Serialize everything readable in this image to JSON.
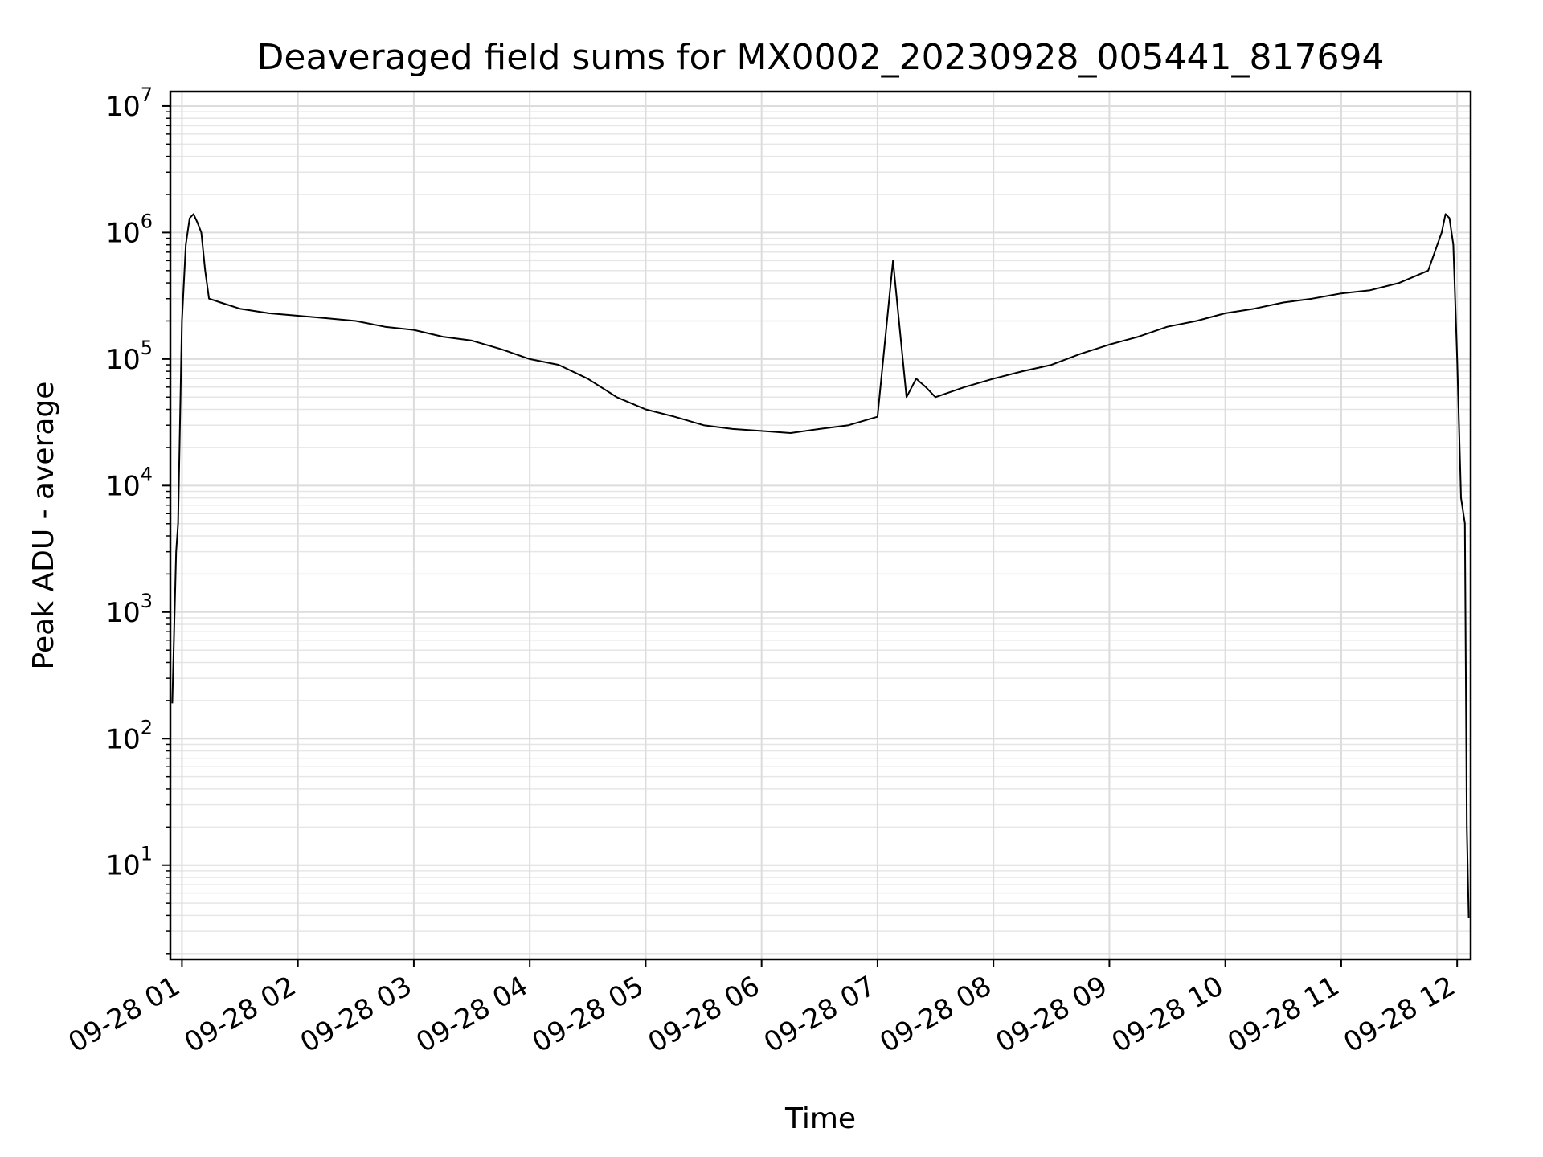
{
  "chart_data": {
    "type": "line",
    "title": "Deaveraged field sums for MX0002_20230928_005441_817694",
    "xlabel": "Time",
    "ylabel": "Peak ADU - average",
    "yscale": "log",
    "ylim": [
      1.8,
      13000000
    ],
    "xlim": [
      "09-28 00:54",
      "09-28 12:07"
    ],
    "grid": true,
    "color": "#000000",
    "x_ticks": [
      {
        "label": "09-28 01",
        "value": "09-28 01:00"
      },
      {
        "label": "09-28 02",
        "value": "09-28 02:00"
      },
      {
        "label": "09-28 03",
        "value": "09-28 03:00"
      },
      {
        "label": "09-28 04",
        "value": "09-28 04:00"
      },
      {
        "label": "09-28 05",
        "value": "09-28 05:00"
      },
      {
        "label": "09-28 06",
        "value": "09-28 06:00"
      },
      {
        "label": "09-28 07",
        "value": "09-28 07:00"
      },
      {
        "label": "09-28 08",
        "value": "09-28 08:00"
      },
      {
        "label": "09-28 09",
        "value": "09-28 09:00"
      },
      {
        "label": "09-28 10",
        "value": "09-28 10:00"
      },
      {
        "label": "09-28 11",
        "value": "09-28 11:00"
      },
      {
        "label": "09-28 12",
        "value": "09-28 12:00"
      }
    ],
    "y_ticks": [
      {
        "base": "10",
        "exp": "1",
        "value": 10
      },
      {
        "base": "10",
        "exp": "2",
        "value": 100
      },
      {
        "base": "10",
        "exp": "3",
        "value": 1000
      },
      {
        "base": "10",
        "exp": "4",
        "value": 10000
      },
      {
        "base": "10",
        "exp": "5",
        "value": 100000
      },
      {
        "base": "10",
        "exp": "6",
        "value": 1000000
      },
      {
        "base": "10",
        "exp": "7",
        "value": 10000000
      }
    ],
    "series": [
      {
        "x": [
          "09-28 00:55",
          "09-28 00:57",
          "09-28 00:58",
          "09-28 01:00",
          "09-28 01:02",
          "09-28 01:04",
          "09-28 01:06",
          "09-28 01:08",
          "09-28 01:10",
          "09-28 01:12",
          "09-28 01:14",
          "09-28 01:20",
          "09-28 01:30",
          "09-28 01:45",
          "09-28 02:00",
          "09-28 02:15",
          "09-28 02:30",
          "09-28 02:45",
          "09-28 03:00",
          "09-28 03:15",
          "09-28 03:30",
          "09-28 03:45",
          "09-28 04:00",
          "09-28 04:15",
          "09-28 04:30",
          "09-28 04:45",
          "09-28 05:00",
          "09-28 05:15",
          "09-28 05:30",
          "09-28 05:45",
          "09-28 06:00",
          "09-28 06:15",
          "09-28 06:30",
          "09-28 06:45",
          "09-28 07:00",
          "09-28 07:08",
          "09-28 07:15",
          "09-28 07:20",
          "09-28 07:25",
          "09-28 07:30",
          "09-28 07:45",
          "09-28 08:00",
          "09-28 08:15",
          "09-28 08:30",
          "09-28 08:45",
          "09-28 09:00",
          "09-28 09:15",
          "09-28 09:30",
          "09-28 09:45",
          "09-28 10:00",
          "09-28 10:15",
          "09-28 10:30",
          "09-28 10:45",
          "09-28 11:00",
          "09-28 11:15",
          "09-28 11:30",
          "09-28 11:45",
          "09-28 11:52",
          "09-28 11:54",
          "09-28 11:56",
          "09-28 11:58",
          "09-28 12:00",
          "09-28 12:02",
          "09-28 12:04",
          "09-28 12:05",
          "09-28 12:06"
        ],
        "y": [
          190,
          3000,
          5000,
          200000,
          800000,
          1300000,
          1400000,
          1200000,
          1000000,
          500000,
          300000,
          280000,
          250000,
          230000,
          220000,
          210000,
          200000,
          180000,
          170000,
          150000,
          140000,
          120000,
          100000,
          90000,
          70000,
          50000,
          40000,
          35000,
          30000,
          28000,
          27000,
          26000,
          28000,
          30000,
          35000,
          600000,
          50000,
          70000,
          60000,
          50000,
          60000,
          70000,
          80000,
          90000,
          110000,
          130000,
          150000,
          180000,
          200000,
          230000,
          250000,
          280000,
          300000,
          330000,
          350000,
          400000,
          500000,
          1000000,
          1400000,
          1300000,
          800000,
          100000,
          8000,
          5000,
          20,
          3.8
        ]
      }
    ]
  }
}
